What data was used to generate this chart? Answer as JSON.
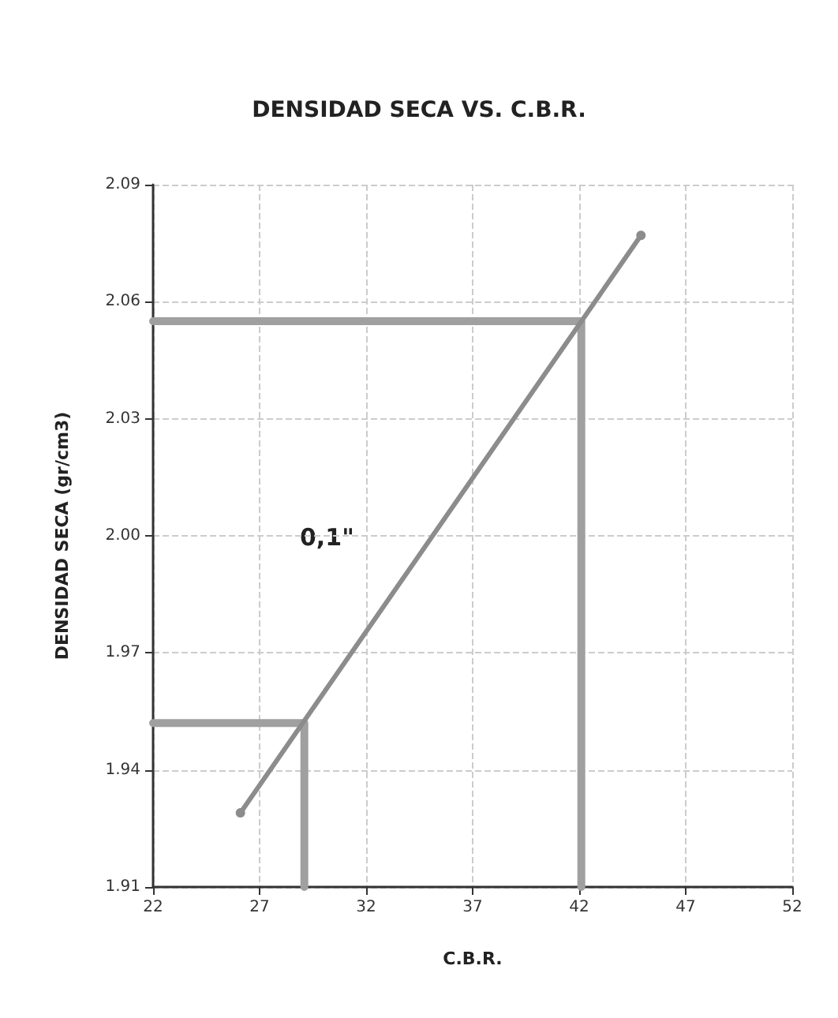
{
  "chart_data": {
    "type": "line",
    "title": "DENSIDAD SECA VS. C.B.R.",
    "xlabel": "C.B.R.",
    "ylabel": "DENSIDAD SECA (gr/cm3)",
    "annotations": [
      "0,1\""
    ],
    "xlim": [
      22,
      52
    ],
    "xticks": [
      22,
      27,
      32,
      37,
      42,
      47,
      52
    ],
    "ylim": [
      1.91,
      2.09
    ],
    "yticks": [
      1.91,
      1.94,
      1.97,
      {
        "value": 2,
        "label": "2.00"
      },
      2.03,
      2.06,
      2.09
    ],
    "grid": true,
    "marker": "circle",
    "line_style": "solid",
    "series": [
      {
        "color": "#8c8c8c",
        "x": [
          26.1,
          44.9
        ],
        "values": [
          1.929,
          2.077
        ]
      },
      {
        "color": "#a0a0a0",
        "x": [
          22,
          42.1,
          42.1
        ],
        "values": [
          2.055,
          2.055,
          1.91
        ],
        "marker": "none"
      },
      {
        "color": "#a0a0a0",
        "x": [
          22,
          29.1,
          29.1
        ],
        "values": [
          1.952,
          1.952,
          1.91
        ],
        "marker": "none"
      }
    ]
  }
}
